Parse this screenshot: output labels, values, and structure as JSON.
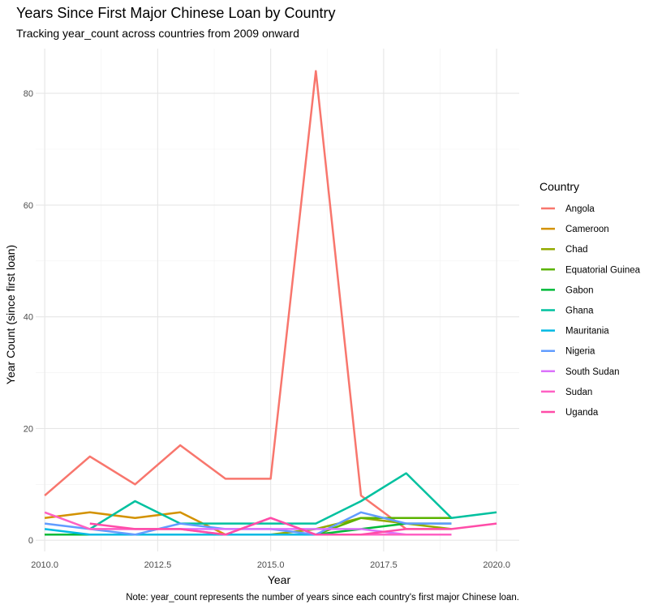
{
  "chart_data": {
    "type": "line",
    "title": "Years Since First Major Chinese Loan by Country",
    "subtitle": "Tracking year_count across countries from 2009 onward",
    "xlabel": "Year",
    "ylabel": "Year Count (since first loan)",
    "caption": "Note: year_count represents the number of years since each country's first major Chinese loan.",
    "xlim": [
      2009.8,
      2020.5
    ],
    "ylim": [
      -2,
      88
    ],
    "x_ticks": [
      2010,
      2012.5,
      2015,
      2017.5,
      2020
    ],
    "x_tick_labels": [
      "2010.0",
      "2012.5",
      "2015.0",
      "2017.5",
      "2020.0"
    ],
    "y_ticks": [
      0,
      20,
      40,
      60,
      80
    ],
    "y_tick_labels": [
      "0",
      "20",
      "40",
      "60",
      "80"
    ],
    "grid": true,
    "legend_title": "Country",
    "legend_position": "right",
    "series": [
      {
        "name": "Angola",
        "color": "#F8766D",
        "x": [
          2010,
          2011,
          2012,
          2013,
          2014,
          2015,
          2016,
          2017,
          2018,
          2019
        ],
        "y": [
          8,
          15,
          10,
          17,
          11,
          11,
          84,
          8,
          2,
          2
        ]
      },
      {
        "name": "Cameroon",
        "color": "#D39200",
        "x": [
          2010,
          2011,
          2012,
          2013,
          2014,
          2015,
          2016,
          2017,
          2018,
          2019
        ],
        "y": [
          4,
          5,
          4,
          5,
          1,
          1,
          1,
          1,
          1,
          1
        ]
      },
      {
        "name": "Chad",
        "color": "#93AA00",
        "x": [
          2010,
          2011,
          2012,
          2013,
          2014,
          2015,
          2016,
          2017,
          2018,
          2019
        ],
        "y": [
          1,
          1,
          1,
          1,
          1,
          1,
          2,
          4,
          3,
          2
        ]
      },
      {
        "name": "Equatorial Guinea",
        "color": "#5BB300",
        "x": [
          2010,
          2011,
          2012,
          2013,
          2014,
          2015,
          2016,
          2017,
          2018,
          2019
        ],
        "y": [
          1,
          1,
          1,
          1,
          1,
          1,
          1,
          4,
          4,
          4
        ]
      },
      {
        "name": "Gabon",
        "color": "#00BA38",
        "x": [
          2010,
          2011,
          2012,
          2013,
          2014,
          2015,
          2016,
          2017,
          2018,
          2019
        ],
        "y": [
          1,
          1,
          1,
          1,
          1,
          1,
          1,
          2,
          3,
          3
        ]
      },
      {
        "name": "Ghana",
        "color": "#00C19F",
        "x": [
          2011,
          2012,
          2013,
          2014,
          2015,
          2016,
          2017,
          2018,
          2019,
          2020
        ],
        "y": [
          2,
          7,
          3,
          3,
          3,
          3,
          7,
          12,
          4,
          5
        ]
      },
      {
        "name": "Mauritania",
        "color": "#00B9E3",
        "x": [
          2010,
          2011,
          2012,
          2013,
          2014,
          2015,
          2016,
          2017,
          2018,
          2019
        ],
        "y": [
          2,
          1,
          1,
          1,
          1,
          1,
          1,
          1,
          1,
          1
        ]
      },
      {
        "name": "Nigeria",
        "color": "#619CFF",
        "x": [
          2010,
          2011,
          2012,
          2013,
          2014,
          2015,
          2016,
          2017,
          2018,
          2019
        ],
        "y": [
          3,
          2,
          1,
          3,
          2,
          2,
          1,
          5,
          3,
          3
        ]
      },
      {
        "name": "South Sudan",
        "color": "#DB72FB",
        "x": [
          2011,
          2012,
          2013,
          2014,
          2015,
          2016,
          2017,
          2018,
          2019
        ],
        "y": [
          2,
          2,
          2,
          2,
          2,
          2,
          2,
          1,
          1
        ]
      },
      {
        "name": "Sudan",
        "color": "#FF61C3",
        "x": [
          2010,
          2011,
          2012,
          2013,
          2014,
          2015,
          2016,
          2017,
          2018,
          2019
        ],
        "y": [
          5,
          2,
          2,
          2,
          1,
          4,
          1,
          1,
          1,
          1
        ]
      },
      {
        "name": "Uganda",
        "color": "#FF4CA8",
        "x": [
          2011,
          2012,
          2013,
          2014,
          2015,
          2016,
          2017,
          2018,
          2019,
          2020
        ],
        "y": [
          3,
          2,
          2,
          1,
          4,
          1,
          1,
          2,
          2,
          3
        ]
      }
    ]
  }
}
